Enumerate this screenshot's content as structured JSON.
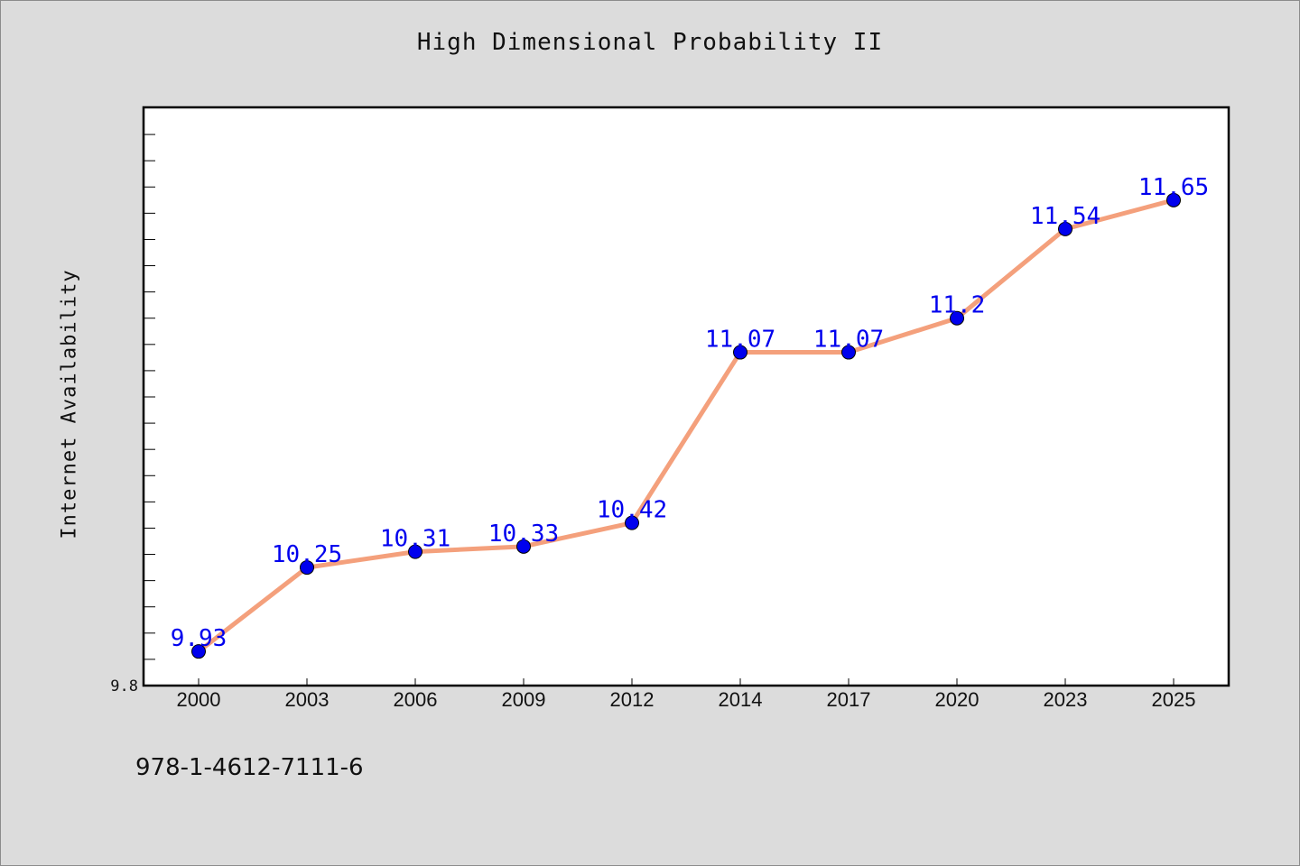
{
  "chart_data": {
    "type": "line",
    "title": "High Dimensional Probability II",
    "xlabel": "",
    "ylabel": "Internet Availability",
    "categories": [
      "2000",
      "2003",
      "2006",
      "2009",
      "2012",
      "2014",
      "2017",
      "2020",
      "2023",
      "2025"
    ],
    "series": [
      {
        "values": [
          9.93,
          10.25,
          10.31,
          10.33,
          10.42,
          11.07,
          11.07,
          11.2,
          11.54,
          11.65
        ],
        "labels": [
          "9.93",
          "10.25",
          "10.31",
          "10.33",
          "10.42",
          "11.07",
          "11.07",
          "11.2",
          "11.54",
          "11.65"
        ],
        "line_color": "#f4a07c",
        "marker_color": "#0000ee",
        "label_color": "#0000ee"
      }
    ],
    "ylim": [
      9.8,
      12.0
    ],
    "ytick_labels": [
      "9.8"
    ],
    "grid": false,
    "legend": "none"
  },
  "footnote": "978-1-4612-7111-6"
}
